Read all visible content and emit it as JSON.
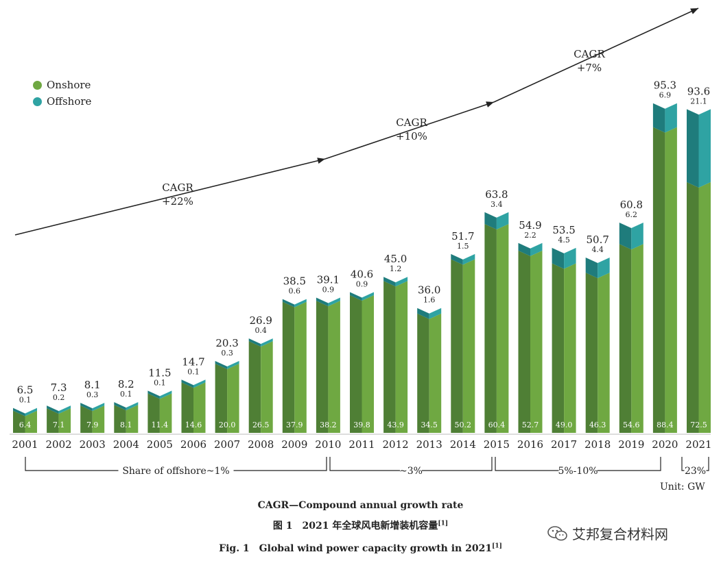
{
  "chart_data": {
    "type": "bar",
    "stacked": true,
    "unit": "Unit: GW",
    "categories": [
      "2001",
      "2002",
      "2003",
      "2004",
      "2005",
      "2006",
      "2007",
      "2008",
      "2009",
      "2010",
      "2011",
      "2012",
      "2013",
      "2014",
      "2015",
      "2016",
      "2017",
      "2018",
      "2019",
      "2020",
      "2021"
    ],
    "totals": [
      "6.5",
      "7.3",
      "8.1",
      "8.2",
      "11.5",
      "14.7",
      "20.3",
      "26.9",
      "38.5",
      "39.1",
      "40.6",
      "45.0",
      "36.0",
      "51.7",
      "63.8",
      "54.9",
      "53.5",
      "50.7",
      "60.8",
      "95.3",
      "93.6"
    ],
    "series": [
      {
        "name": "Onshore",
        "color": "#6fa842",
        "values": [
          6.4,
          7.1,
          7.9,
          8.1,
          11.4,
          14.6,
          20.0,
          26.5,
          37.9,
          38.2,
          39.8,
          43.9,
          34.5,
          50.2,
          60.4,
          52.7,
          49.0,
          46.3,
          54.6,
          88.4,
          72.5
        ],
        "labels": [
          "6.4",
          "7.1",
          "7.9",
          "8.1",
          "11.4",
          "14.6",
          "20.0",
          "26.5",
          "37.9",
          "38.2",
          "39.8",
          "43.9",
          "34.5",
          "50.2",
          "60.4",
          "52.7",
          "49.0",
          "46.3",
          "54.6",
          "88.4",
          "72.5"
        ]
      },
      {
        "name": "Offshore",
        "color": "#2fa3a3",
        "values": [
          0.1,
          0.2,
          0.3,
          0.1,
          0.1,
          0.1,
          0.3,
          0.4,
          0.6,
          0.9,
          0.9,
          1.2,
          1.6,
          1.5,
          3.4,
          2.2,
          4.5,
          4.4,
          6.2,
          6.9,
          21.1
        ],
        "labels": [
          "0.1",
          "0.2",
          "0.3",
          "0.1",
          "0.1",
          "0.1",
          "0.3",
          "0.4",
          "0.6",
          "0.9",
          "0.9",
          "1.2",
          "1.6",
          "1.5",
          "3.4",
          "2.2",
          "4.5",
          "4.4",
          "6.2",
          "6.9",
          "21.1"
        ]
      }
    ],
    "ylim": [
      0,
      110
    ],
    "cagr_annotations": [
      {
        "line1": "CAGR",
        "line2": "+22%"
      },
      {
        "line1": "CAGR",
        "line2": "+10%"
      },
      {
        "line1": "CAGR",
        "line2": "+7%"
      }
    ],
    "offshore_share_brackets": [
      {
        "label": "Share of offshore~1%",
        "from": "2001",
        "to": "2010"
      },
      {
        "label": "~3%",
        "from": "2011",
        "to": "2015"
      },
      {
        "label": "5%-10%",
        "from": "2016",
        "to": "2020"
      },
      {
        "label": "23%",
        "from": "2021",
        "to": "2021"
      }
    ]
  },
  "legend": {
    "onshore": "Onshore",
    "offshore": "Offshore",
    "onshore_color": "#6fa842",
    "offshore_color": "#2fa3a3"
  },
  "captions": {
    "abbrev": "CAGR—Compound annual growth rate",
    "figure_cn": "图 1　2021 年全球风电新增装机容量",
    "figure_en": "Fig. 1　Global wind power capacity growth in 2021",
    "ref": "[1]"
  },
  "watermark": {
    "text": "艾邦复合材料网",
    "icon": "wechat-icon"
  }
}
